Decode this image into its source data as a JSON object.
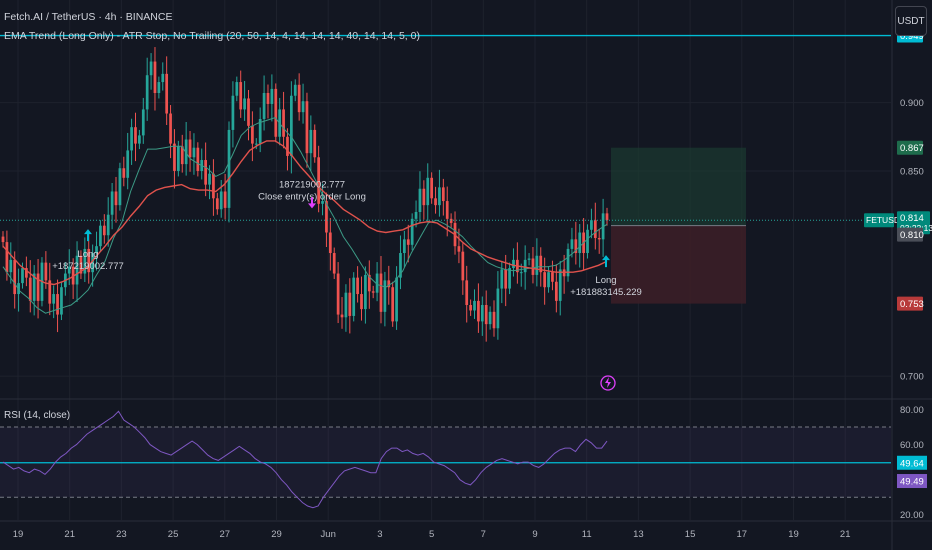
{
  "header": {
    "symbol_line": "Fetch.AI / TetherUS · 4h · BINANCE",
    "strategy_line": "EMA Trend (Long Only) - ATR Stop, No Trailing (20, 50, 14, 4, 14, 14, 14, 40, 14, 14, 5, 0)"
  },
  "currency_button": "USDT",
  "rsi_title": "RSI (14, close)",
  "colors": {
    "background": "#131722",
    "up": "#26a69a",
    "down": "#ef5350",
    "ema_fast": "#3c9b86",
    "ema_slow": "#e0524c",
    "resistance": "#00bcd4",
    "rsi": "#7e57c2",
    "take_profit_zone": "#1b3a30",
    "stop_zone": "#3d1f27"
  },
  "chart_data": {
    "type": "candlestick",
    "price_axis": {
      "range": [
        0.684,
        0.975
      ],
      "ticks": [
        "0.900",
        "0.850",
        "0.700"
      ],
      "tick_values": [
        0.9,
        0.85,
        0.7
      ]
    },
    "price_labels": [
      {
        "text": "0.949",
        "value": 0.949,
        "color": "#00bcd4"
      },
      {
        "text": "0.867",
        "value": 0.867,
        "color": "#1e6c4c"
      },
      {
        "text": "FETUSDT",
        "value": 0.814,
        "color": "#00897b"
      },
      {
        "text": "0.814",
        "value": 0.814,
        "color": "#00897b"
      },
      {
        "text": "03:22:13",
        "value": 0.814,
        "color": "#00897b"
      },
      {
        "text": "0.810",
        "value": 0.81,
        "color": "#4a4e58"
      },
      {
        "text": "0.753",
        "value": 0.753,
        "color": "#b83a3a"
      }
    ],
    "resistance_level": 0.949,
    "last_price": 0.814,
    "rsi_axis": {
      "ticks": [
        "80.00",
        "60.00",
        "20.00"
      ],
      "tick_values": [
        80,
        60,
        20
      ],
      "labels": [
        {
          "text": "49.64",
          "value": 49.64,
          "color": "#00bcd4"
        },
        {
          "text": "49.49",
          "value": 49.49,
          "color": "#7e57c2"
        }
      ],
      "upper_band": 70,
      "lower_band": 30,
      "mid_level": 49.64
    },
    "x_ticks": [
      "19",
      "21",
      "23",
      "25",
      "27",
      "29",
      "Jun",
      "3",
      "5",
      "7",
      "9",
      "11",
      "13",
      "15",
      "17",
      "19",
      "21"
    ],
    "trades": [
      {
        "lines": [
          "Long",
          "+187219002.777"
        ],
        "price": 0.787,
        "arrow": "up"
      },
      {
        "lines": [
          "187219002.777",
          "Close entry(s) order Long"
        ],
        "price": 0.838,
        "arrow": "down"
      },
      {
        "lines": [
          "Long",
          "+181883145.229"
        ],
        "price": 0.768,
        "arrow": "up"
      }
    ],
    "position": {
      "entry": 0.81,
      "target": 0.867,
      "stop": 0.753
    },
    "series_close": [
      0.798,
      0.776,
      0.785,
      0.76,
      0.768,
      0.779,
      0.772,
      0.755,
      0.775,
      0.755,
      0.783,
      0.77,
      0.753,
      0.76,
      0.745,
      0.765,
      0.775,
      0.78,
      0.767,
      0.788,
      0.775,
      0.793,
      0.776,
      0.79,
      0.795,
      0.81,
      0.803,
      0.818,
      0.835,
      0.825,
      0.852,
      0.845,
      0.865,
      0.882,
      0.87,
      0.876,
      0.895,
      0.92,
      0.93,
      0.907,
      0.915,
      0.921,
      0.892,
      0.87,
      0.85,
      0.868,
      0.855,
      0.873,
      0.86,
      0.867,
      0.85,
      0.858,
      0.84,
      0.848,
      0.83,
      0.822,
      0.835,
      0.823,
      0.88,
      0.905,
      0.915,
      0.895,
      0.903,
      0.883,
      0.87,
      0.87,
      0.888,
      0.907,
      0.899,
      0.91,
      0.875,
      0.895,
      0.875,
      0.861,
      0.905,
      0.913,
      0.893,
      0.901,
      0.863,
      0.88,
      0.86,
      0.826,
      0.828,
      0.805,
      0.79,
      0.775,
      0.745,
      0.743,
      0.761,
      0.744,
      0.772,
      0.76,
      0.749,
      0.774,
      0.762,
      0.761,
      0.775,
      0.747,
      0.77,
      0.765,
      0.74,
      0.772,
      0.79,
      0.8,
      0.796,
      0.815,
      0.82,
      0.837,
      0.825,
      0.845,
      0.83,
      0.825,
      0.838,
      0.828,
      0.815,
      0.812,
      0.795,
      0.791,
      0.77,
      0.752,
      0.748,
      0.755,
      0.74,
      0.752,
      0.738,
      0.747,
      0.735,
      0.764,
      0.778,
      0.764,
      0.779,
      0.785,
      0.776,
      0.776,
      0.785,
      0.786,
      0.774,
      0.788,
      0.776,
      0.765,
      0.776,
      0.769,
      0.755,
      0.778,
      0.773,
      0.793,
      0.8,
      0.79,
      0.805,
      0.79,
      0.807,
      0.814,
      0.801,
      0.8,
      0.819,
      0.814
    ],
    "series_ema_fast": [
      0.78,
      0.771,
      0.762,
      0.757,
      0.75,
      0.746,
      0.748,
      0.75,
      0.752,
      0.757,
      0.763,
      0.774,
      0.784,
      0.801,
      0.813,
      0.835,
      0.851,
      0.866,
      0.866,
      0.867,
      0.868,
      0.868,
      0.859,
      0.855,
      0.852,
      0.846,
      0.849,
      0.862,
      0.876,
      0.882,
      0.885,
      0.887,
      0.889,
      0.881,
      0.874,
      0.864,
      0.852,
      0.84,
      0.826,
      0.815,
      0.802,
      0.793,
      0.783,
      0.773,
      0.767,
      0.765,
      0.769,
      0.777,
      0.79,
      0.801,
      0.812,
      0.814,
      0.811,
      0.807,
      0.802,
      0.795,
      0.789,
      0.783,
      0.78,
      0.778,
      0.777,
      0.778,
      0.779,
      0.78,
      0.78,
      0.781,
      0.785,
      0.79,
      0.796,
      0.802,
      0.807,
      0.811
    ],
    "series_ema_slow": [
      0.795,
      0.788,
      0.781,
      0.776,
      0.771,
      0.768,
      0.767,
      0.769,
      0.772,
      0.776,
      0.78,
      0.788,
      0.795,
      0.803,
      0.809,
      0.817,
      0.824,
      0.832,
      0.836,
      0.838,
      0.839,
      0.84,
      0.837,
      0.836,
      0.836,
      0.835,
      0.84,
      0.848,
      0.857,
      0.865,
      0.869,
      0.872,
      0.872,
      0.868,
      0.861,
      0.853,
      0.846,
      0.839,
      0.833,
      0.828,
      0.822,
      0.818,
      0.814,
      0.809,
      0.806,
      0.805,
      0.806,
      0.807,
      0.81,
      0.812,
      0.813,
      0.812,
      0.808,
      0.804,
      0.798,
      0.793,
      0.79,
      0.787,
      0.785,
      0.783,
      0.781,
      0.78,
      0.779,
      0.778,
      0.777,
      0.776,
      0.776,
      0.776,
      0.777,
      0.779,
      0.781,
      0.784
    ],
    "series_rsi": [
      50,
      48,
      46,
      47,
      45,
      44,
      46,
      45,
      43,
      46,
      50,
      53,
      55,
      58,
      60,
      63,
      66,
      68,
      70,
      72,
      74,
      76,
      79,
      74,
      72,
      70,
      67,
      64,
      60,
      58,
      56,
      55,
      54,
      56,
      58,
      60,
      62,
      60,
      57,
      54,
      52,
      51,
      53,
      55,
      57,
      59,
      57,
      55,
      52,
      50,
      49,
      47,
      44,
      40,
      37,
      33,
      30,
      27,
      25,
      24,
      25,
      30,
      34,
      38,
      42,
      45,
      46,
      47,
      46,
      45,
      44,
      44,
      52,
      56,
      58,
      58,
      56,
      57,
      55,
      54,
      55,
      53,
      50,
      49,
      48,
      46,
      44,
      40,
      38,
      37,
      40,
      44,
      47,
      49,
      51,
      52,
      51,
      50,
      49,
      50,
      50,
      48,
      47,
      49,
      52,
      55,
      57,
      58,
      58,
      56,
      60,
      63,
      61,
      58,
      58,
      62
    ]
  }
}
